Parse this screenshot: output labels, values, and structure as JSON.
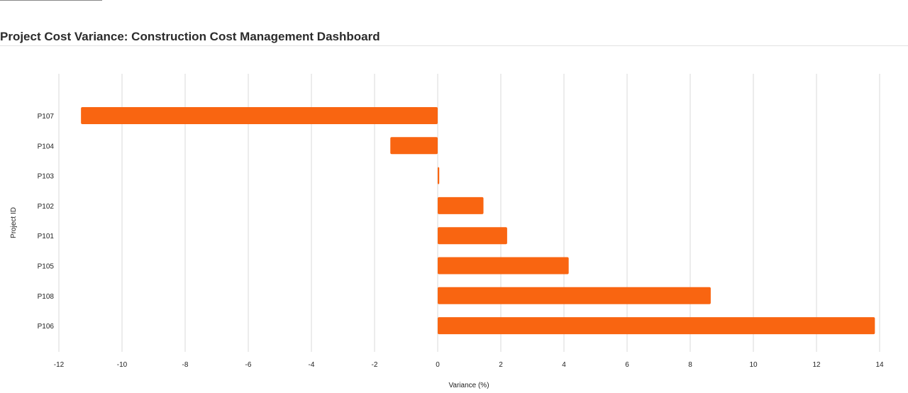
{
  "page": {
    "title": "Project Cost Variance: Construction Cost Management Dashboard"
  },
  "colors": {
    "bar": "#f96511",
    "grid": "#d9d9d9",
    "text": "#222222"
  },
  "chart_data": {
    "type": "bar",
    "orientation": "horizontal",
    "title": "",
    "xlabel": "Variance (%)",
    "ylabel": "Project ID",
    "xlim": [
      -12,
      14
    ],
    "xticks": [
      -12,
      -10,
      -8,
      -6,
      -4,
      -2,
      0,
      2,
      4,
      6,
      8,
      10,
      12,
      14
    ],
    "grid": true,
    "categories": [
      "P107",
      "P104",
      "P103",
      "P102",
      "P101",
      "P105",
      "P108",
      "P106"
    ],
    "values": [
      -11.3,
      -1.5,
      0.05,
      1.45,
      2.2,
      4.15,
      8.65,
      13.85
    ]
  }
}
